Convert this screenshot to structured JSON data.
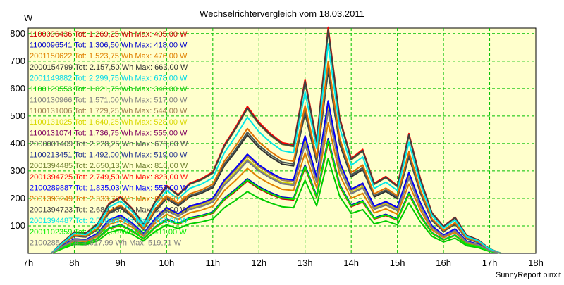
{
  "chart_data": {
    "type": "line",
    "title": "Wechselrichtervergleich vom 18.03.2011",
    "ylabel": "W",
    "xlabel": "",
    "footer": "SunnyReport pinxit",
    "ylim": [
      0,
      820
    ],
    "xlim": [
      7,
      18
    ],
    "yticks": [
      100,
      200,
      300,
      400,
      500,
      600,
      700,
      800
    ],
    "xticks": [
      "7h",
      "8h",
      "9h",
      "10h",
      "11h",
      "12h",
      "13h",
      "14h",
      "15h",
      "16h",
      "17h",
      "18h"
    ],
    "grid": true,
    "plot_background": "#ffffcc",
    "grid_color": "#00c000",
    "x": [
      7.0,
      7.25,
      7.5,
      7.75,
      8.0,
      8.25,
      8.5,
      8.75,
      9.0,
      9.25,
      9.5,
      9.75,
      10.0,
      10.25,
      10.5,
      10.75,
      11.0,
      11.25,
      11.5,
      11.75,
      12.0,
      12.25,
      12.5,
      12.75,
      13.0,
      13.25,
      13.5,
      13.75,
      14.0,
      14.25,
      14.5,
      14.75,
      15.0,
      15.25,
      15.5,
      15.75,
      16.0,
      16.25,
      16.5,
      16.75,
      17.0,
      17.25,
      17.5,
      17.75,
      18.0
    ],
    "base_shape": [
      0,
      0,
      0,
      0.05,
      0.095,
      0.09,
      0.13,
      0.22,
      0.25,
      0.2,
      0.13,
      0.23,
      0.3,
      0.26,
      0.31,
      0.33,
      0.36,
      0.48,
      0.56,
      0.65,
      0.58,
      0.53,
      0.49,
      0.48,
      0.77,
      0.5,
      1.0,
      0.6,
      0.42,
      0.46,
      0.31,
      0.34,
      0.3,
      0.53,
      0.33,
      0.18,
      0.12,
      0.16,
      0.08,
      0.06,
      0.02,
      0,
      0,
      0,
      0
    ],
    "series": [
      {
        "name": "1100096436 Tot: 1.269,25 Wh Max: 405,00 W",
        "color": "#cc0000",
        "scale": 405
      },
      {
        "name": "1100096541 Tot: 1.306,50 Wh Max: 418,00 W",
        "color": "#0000cc",
        "scale": 418
      },
      {
        "name": "2001150622 Tot: 1.523,75 Wh Max: 476,00 W",
        "color": "#e08000",
        "scale": 476
      },
      {
        "name": "2000154799 Tot: 2.157,50 Wh Max: 663,00 W",
        "color": "#303030",
        "scale": 663
      },
      {
        "name": "2001149882 Tot: 2.299,75 Wh Max: 678,00 W",
        "color": "#00d8e8",
        "scale": 678
      },
      {
        "name": "1100129553 Tot: 1.021,75 Wh Max: 346,00 W",
        "color": "#00cc00",
        "scale": 346
      },
      {
        "name": "1100130966 Tot: 1.571,00 Wh Max: 517,00 W",
        "color": "#808080",
        "scale": 517
      },
      {
        "name": "1100131006 Tot: 1.729,25 Wh Max: 544,00 W",
        "color": "#a08050",
        "scale": 544
      },
      {
        "name": "1100131025 Tot: 1.640,25 Wh Max: 528,00 W",
        "color": "#d8d800",
        "scale": 528
      },
      {
        "name": "1100131074 Tot: 1.736,75 Wh Max: 555,00 W",
        "color": "#800060",
        "scale": 555
      },
      {
        "name": "2000001409 Tot: 2.228,25 Wh Max: 678,00 W",
        "color": "#505050",
        "scale": 678
      },
      {
        "name": "1100213451 Tot: 1.492,00 Wh Max: 519,00 W",
        "color": "#203090",
        "scale": 519
      },
      {
        "name": "2001394485 Tot: 2.650,13 Wh Max: 810,00 W",
        "color": "#708030",
        "scale": 810
      },
      {
        "name": "2001394725 Tot: 2.749,50 Wh Max: 823,00 W",
        "color": "#ff0000",
        "scale": 823
      },
      {
        "name": "2100289887 Tot: 1.835,03 Wh Max: 555,00 W",
        "color": "#0000ff",
        "scale": 555
      },
      {
        "name": "2001393249 Tot: 2.333,75 Wh Max: 699,00 W",
        "color": "#e07000",
        "scale": 699
      },
      {
        "name": "2001394723 Tot: 2.680,13 Wh Max: 814,00 W",
        "color": "#404040",
        "scale": 814
      },
      {
        "name": "2001394487 Tot: 2.518,63 Wh Max: 763,00 W",
        "color": "#00e8e8",
        "scale": 763
      },
      {
        "name": "2001102359 Tot: 1.325,00 Wh Max: 411,00 W",
        "color": "#00ee00",
        "scale": 411
      },
      {
        "name": "2100285... Tot: 1.617,99 Wh Max: 519,71 W",
        "color": "#808080",
        "scale": 520
      }
    ]
  }
}
